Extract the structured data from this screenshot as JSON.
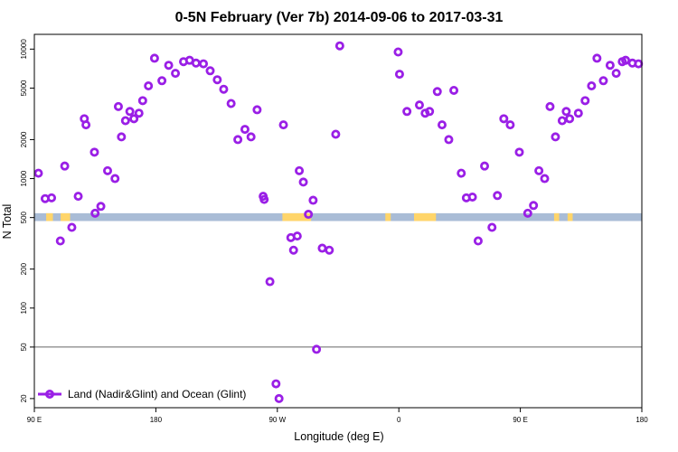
{
  "chart_data": {
    "type": "scatter",
    "title": "0-5N February (Ver 7b)   2014-09-06 to 2017-03-31",
    "xlabel": "Longitude (deg E)",
    "ylabel": "N Total",
    "x_scale": "linear",
    "y_scale": "log",
    "xlim": [
      90,
      270
    ],
    "ylim": [
      17,
      13000
    ],
    "x_ticks": [
      {
        "value": 90,
        "label": "90 E"
      },
      {
        "value": 126,
        "label": "180"
      },
      {
        "value": 162,
        "label": "90 W"
      },
      {
        "value": 198,
        "label": "0"
      },
      {
        "value": 234,
        "label": "90 E"
      },
      {
        "value": 270,
        "label": "180"
      }
    ],
    "y_ticks": [
      {
        "value": 20,
        "label": "20"
      },
      {
        "value": 50,
        "label": "50"
      },
      {
        "value": 100,
        "label": "100"
      },
      {
        "value": 200,
        "label": "200"
      },
      {
        "value": 500,
        "label": "500"
      },
      {
        "value": 1000,
        "label": "1000"
      },
      {
        "value": 2000,
        "label": "2000"
      },
      {
        "value": 5000,
        "label": "5000"
      },
      {
        "value": 10000,
        "label": "10000"
      }
    ],
    "reference_line": {
      "y": 50,
      "color": "#666666"
    },
    "surface_band": {
      "y_range": [
        470,
        540
      ],
      "ocean_color": "#a9bcd6",
      "land_color": "#ffd56a",
      "land_segments": [
        [
          93.5,
          95.5
        ],
        [
          97.8,
          100.6
        ],
        [
          163.5,
          172.0
        ],
        [
          194.0,
          195.6
        ],
        [
          202.5,
          209.0
        ],
        [
          244.0,
          245.5
        ],
        [
          248.0,
          249.5
        ]
      ]
    },
    "series": [
      {
        "name": "Land (Nadir&Glint) and Ocean (Glint)",
        "color": "#9a1fe6",
        "x": [
          91.2,
          93.2,
          95.1,
          97.7,
          99.0,
          101.1,
          103.0,
          104.8,
          105.3,
          107.8,
          108.0,
          109.7,
          111.7,
          113.9,
          114.9,
          115.8,
          117.0,
          118.3,
          119.5,
          121.0,
          122.1,
          123.8,
          125.6,
          127.8,
          129.8,
          131.8,
          134.2,
          136.0,
          137.9,
          140.1,
          142.1,
          144.2,
          146.1,
          148.3,
          150.3,
          152.4,
          154.2,
          156.0,
          157.8,
          158.1,
          159.8,
          161.6,
          162.5,
          163.8,
          166.0,
          166.8,
          167.9,
          168.5,
          169.7,
          171.2,
          172.6,
          173.6,
          175.3,
          177.4,
          179.3,
          180.5,
          197.8,
          198.2,
          200.4,
          204.1,
          205.8,
          207.1,
          209.4,
          210.8,
          212.8,
          214.3,
          216.5,
          218.0,
          219.8,
          221.5,
          223.4,
          225.6,
          227.2,
          229.1,
          231.0,
          233.7,
          236.2,
          237.9,
          239.5,
          241.2,
          242.8,
          244.4,
          246.4,
          247.6,
          248.6,
          251.2,
          253.2,
          255.1,
          256.7,
          258.6,
          260.6,
          262.4,
          264.2,
          265.2,
          267.2,
          269.0
        ],
        "y": [
          1100,
          700,
          710,
          330,
          1250,
          420,
          730,
          2900,
          2600,
          1600,
          540,
          610,
          1150,
          1000,
          3600,
          2100,
          2800,
          3300,
          2900,
          3200,
          4000,
          5200,
          8500,
          5700,
          7500,
          6500,
          8000,
          8200,
          7800,
          7700,
          6800,
          5800,
          4900,
          3800,
          2000,
          2400,
          2100,
          3400,
          730,
          690,
          160,
          26,
          20,
          2600,
          350,
          280,
          360,
          1150,
          940,
          530,
          680,
          48,
          290,
          280,
          2200,
          10600,
          9500,
          6400,
          3300,
          3700,
          3200,
          3300,
          4700,
          2600,
          2000,
          4800,
          1100,
          710,
          720,
          330,
          1250,
          420,
          740,
          2900,
          2600,
          1600,
          540,
          620,
          1150,
          1000,
          3600,
          2100,
          2800,
          3300,
          2900,
          3200,
          4000,
          5200,
          8500,
          5700,
          7500,
          6500,
          8000,
          8200,
          7800,
          7700
        ]
      }
    ],
    "legend": {
      "placement": "bottom-left",
      "label": "Land (Nadir&Glint) and Ocean (Glint)"
    }
  }
}
